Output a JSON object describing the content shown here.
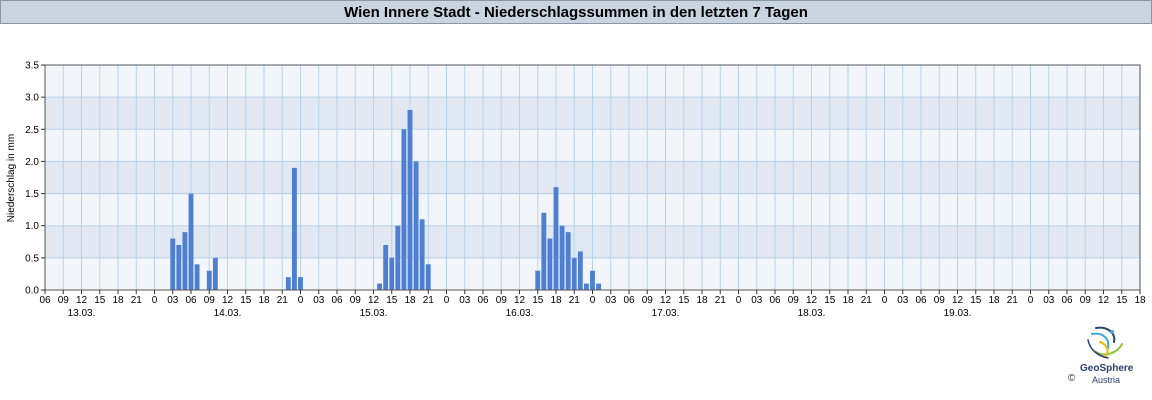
{
  "chart_data": {
    "type": "bar",
    "title": "Wien Innere Stadt - Niederschlagssummen in den letzten 7 Tagen",
    "ylabel": "Niederschlag in mm",
    "xlabel": "",
    "ylim": [
      0,
      3.5
    ],
    "yticks": [
      "0.0",
      "0.5",
      "1.0",
      "1.5",
      "2.0",
      "2.5",
      "3.0",
      "3.5"
    ],
    "grid": true,
    "x_tick_labels": [
      "06",
      "09",
      "12",
      "15",
      "18",
      "21",
      "0",
      "03",
      "06",
      "09",
      "12",
      "15",
      "18",
      "21",
      "0",
      "03",
      "06",
      "09",
      "12",
      "15",
      "18",
      "21",
      "0",
      "03",
      "06",
      "09",
      "12",
      "15",
      "18",
      "21",
      "0",
      "03",
      "06",
      "09",
      "12",
      "15",
      "18",
      "21",
      "0",
      "03",
      "06",
      "09",
      "12",
      "15",
      "18",
      "21",
      "0",
      "03",
      "06",
      "09",
      "12",
      "15",
      "18",
      "21",
      "0",
      "03",
      "06",
      "09",
      "12",
      "15",
      "18"
    ],
    "date_labels": [
      "13.03.",
      "14.03.",
      "15.03.",
      "16.03.",
      "17.03.",
      "18.03.",
      "19.03."
    ],
    "series": [
      {
        "hourly_start": "06",
        "values": [
          0,
          0,
          0,
          0,
          0,
          0,
          0,
          0,
          0,
          0,
          0,
          0,
          0,
          0,
          0,
          0,
          0,
          0,
          0,
          0,
          0.8,
          0.7,
          0.9,
          1.5,
          0.4,
          0,
          0.3,
          0.5,
          0,
          0,
          0,
          0,
          0,
          0,
          0,
          0,
          0,
          0,
          0,
          0.2,
          1.9,
          0.2,
          0,
          0,
          0,
          0,
          0,
          0,
          0,
          0,
          0,
          0,
          0,
          0,
          0.1,
          0.7,
          0.5,
          1.0,
          2.5,
          2.8,
          2.0,
          1.1,
          0.4,
          0,
          0,
          0,
          0,
          0,
          0,
          0,
          0,
          0,
          0,
          0,
          0,
          0,
          0,
          0,
          0,
          0,
          0.3,
          1.2,
          0.8,
          1.6,
          1.0,
          0.9,
          0.5,
          0.6,
          0.1,
          0.3,
          0.1,
          0,
          0,
          0,
          0,
          0,
          0,
          0,
          0,
          0,
          0,
          0,
          0,
          0,
          0,
          0,
          0,
          0,
          0,
          0,
          0,
          0,
          0,
          0,
          0,
          0,
          0,
          0,
          0,
          0,
          0,
          0,
          0,
          0,
          0,
          0,
          0,
          0,
          0,
          0,
          0,
          0,
          0,
          0,
          0,
          0,
          0,
          0,
          0,
          0,
          0,
          0,
          0,
          0,
          0,
          0,
          0,
          0,
          0,
          0,
          0,
          0,
          0,
          0,
          0,
          0,
          0,
          0,
          0,
          0,
          0,
          0,
          0,
          0,
          0,
          0,
          0,
          0,
          0,
          0,
          0,
          0,
          0,
          0,
          0,
          0,
          0,
          0,
          0,
          0,
          0,
          0,
          0,
          0,
          0,
          0,
          0,
          0,
          0,
          0,
          0,
          0,
          0,
          0,
          0,
          0,
          0,
          0,
          0,
          0,
          0,
          0,
          0,
          0,
          0,
          0,
          0,
          0,
          0,
          0,
          0,
          0,
          0,
          0,
          0,
          0,
          0,
          0,
          0,
          0,
          0,
          0,
          0,
          0,
          0,
          0,
          0,
          0,
          0,
          0,
          0,
          0,
          0,
          0,
          0,
          0,
          0,
          0,
          0,
          0,
          0,
          0,
          0,
          0,
          0,
          0,
          0,
          0,
          0,
          0,
          0,
          0,
          0,
          0,
          0,
          0,
          0,
          0,
          0,
          0,
          0,
          0,
          0,
          0,
          0,
          0,
          0,
          0,
          0,
          0,
          0,
          0,
          0,
          0,
          0,
          0,
          0,
          0,
          0,
          0,
          0,
          0,
          0,
          0,
          0,
          0,
          0,
          0,
          0,
          0,
          0,
          0,
          0,
          0,
          0,
          0,
          0,
          0,
          0,
          0,
          0,
          0,
          0,
          0,
          0,
          0,
          0,
          0,
          0,
          0,
          0,
          0,
          0,
          0,
          0,
          0,
          0,
          0,
          0,
          0,
          0,
          0,
          0,
          0,
          0,
          0
        ]
      }
    ],
    "colors": {
      "bar": "#4f7fd3",
      "band_light": "#f2f6fb",
      "band_dark": "#e1e8f1",
      "grid": "#b7d2ea"
    }
  },
  "logo": {
    "name": "GeoSphere",
    "sub": "Austria",
    "copyright": "©"
  }
}
